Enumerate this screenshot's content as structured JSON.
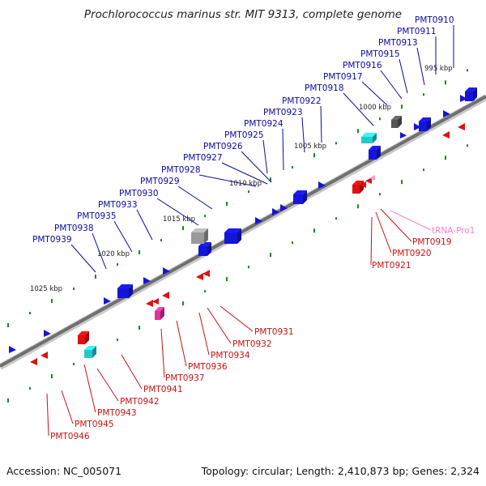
{
  "title": "Prochlorococcus marinus str. MIT 9313, complete genome",
  "accession": "Accession: NC_005071",
  "summary": "Topology: circular; Length: 2,410,873 bp; Genes: 2,324",
  "colors": {
    "backbone": "#7a7a7a",
    "forward_gene": "#1515d8",
    "reverse_gene": "#e01010",
    "trna": "#ff9ad0",
    "rna_cyan": "#27c8c8",
    "pseudo_gray": "#9a9a9a",
    "tick": "#1b8a1b",
    "forward_label": "#0a0aa6",
    "reverse_label": "#cc1010",
    "trna_label": "#ff80c0"
  },
  "scale_labels": [
    "995 kbp",
    "1000 kbp",
    "1005 kbp",
    "1010 kbp",
    "1015 kbp",
    "1020 kbp",
    "1025 kbp"
  ],
  "forward_labels": [
    "PMT0910",
    "PMT0911",
    "PMT0913",
    "PMT0915",
    "PMT0916",
    "PMT0917",
    "PMT0918",
    "PMT0922",
    "PMT0923",
    "PMT0924",
    "PMT0925",
    "PMT0926",
    "PMT0927",
    "PMT0928",
    "PMT0929",
    "PMT0930",
    "PMT0933",
    "PMT0935",
    "PMT0938",
    "PMT0939"
  ],
  "reverse_labels": [
    "PMT0919",
    "PMT0920",
    "PMT0921",
    "PMT0931",
    "PMT0932",
    "PMT0934",
    "PMT0936",
    "PMT0937",
    "PMT0941",
    "PMT0942",
    "PMT0943",
    "PMT0945",
    "PMT0946"
  ],
  "rna_labels": [
    "tRNA-Pro1"
  ]
}
